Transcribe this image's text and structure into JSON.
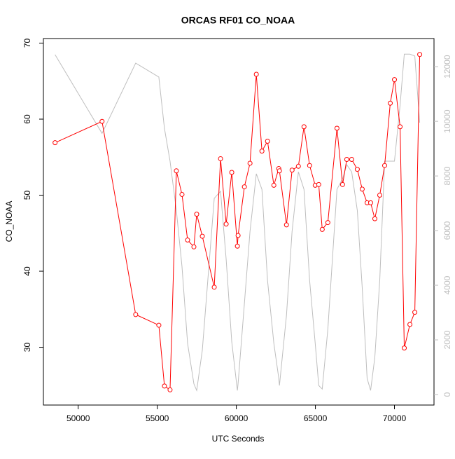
{
  "chart_data": {
    "type": "line",
    "title": "ORCAS RF01 CO_NOAA",
    "x_label": "UTC Seconds",
    "y_label": "CO_NOAA",
    "x": [
      48537,
      51508,
      53636,
      55100,
      55455,
      55809,
      56208,
      56563,
      56918,
      57317,
      57494,
      57849,
      58603,
      59002,
      59357,
      59712,
      60067,
      60111,
      60510,
      60865,
      61264,
      61619,
      61973,
      62373,
      62683,
      62727,
      63171,
      63525,
      63925,
      64279,
      64634,
      64989,
      65211,
      65432,
      65787,
      66364,
      66718,
      66984,
      67295,
      67650,
      67960,
      68271,
      68492,
      68758,
      69069,
      69379,
      69734,
      70000,
      70355,
      70621,
      70976,
      71286,
      71596
    ],
    "series": [
      {
        "color": "#bebebe",
        "axis": "y2",
        "values": [
          12440,
          9560,
          12130,
          11620,
          9740,
          8540,
          6740,
          4690,
          1870,
          390,
          150,
          1620,
          7180,
          7440,
          4950,
          1920,
          150,
          400,
          3330,
          5970,
          8080,
          7510,
          4180,
          1870,
          600,
          330,
          2900,
          5970,
          8150,
          7510,
          4180,
          1870,
          330,
          200,
          2390,
          7510,
          7900,
          8410,
          8150,
          6740,
          3920,
          590,
          150,
          1360,
          4180,
          8540,
          8540,
          8540,
          10590,
          12460,
          12460,
          12390,
          9950
        ]
      },
      {
        "color": "#ff0000",
        "marker": "circle",
        "values": [
          56.9,
          59.7,
          34.3,
          32.9,
          24.9,
          24.4,
          53.2,
          50.1,
          44.1,
          43.2,
          47.5,
          44.6,
          37.9,
          54.8,
          46.2,
          53.0,
          43.3,
          44.7,
          51.1,
          54.2,
          65.9,
          55.8,
          57.1,
          51.3,
          53.5,
          53.2,
          46.1,
          53.3,
          53.8,
          59.0,
          53.9,
          51.3,
          51.4,
          45.5,
          46.4,
          58.8,
          51.4,
          54.7,
          54.7,
          53.4,
          50.8,
          49.0,
          49.0,
          46.9,
          50.0,
          53.9,
          62.1,
          65.2,
          59.0,
          29.9,
          33.0,
          34.6,
          68.5
        ]
      }
    ],
    "xlim": [
      47800,
      72500
    ],
    "xticks": [
      50000,
      55000,
      60000,
      65000,
      70000
    ],
    "ylim": [
      22.4,
      70.6
    ],
    "yticks": [
      30,
      40,
      50,
      60,
      70
    ],
    "y2lim": [
      -385,
      13030
    ],
    "y2ticks": [
      0,
      2000,
      4000,
      6000,
      8000,
      10000,
      12000
    ],
    "y2_color": "#bebebe"
  }
}
